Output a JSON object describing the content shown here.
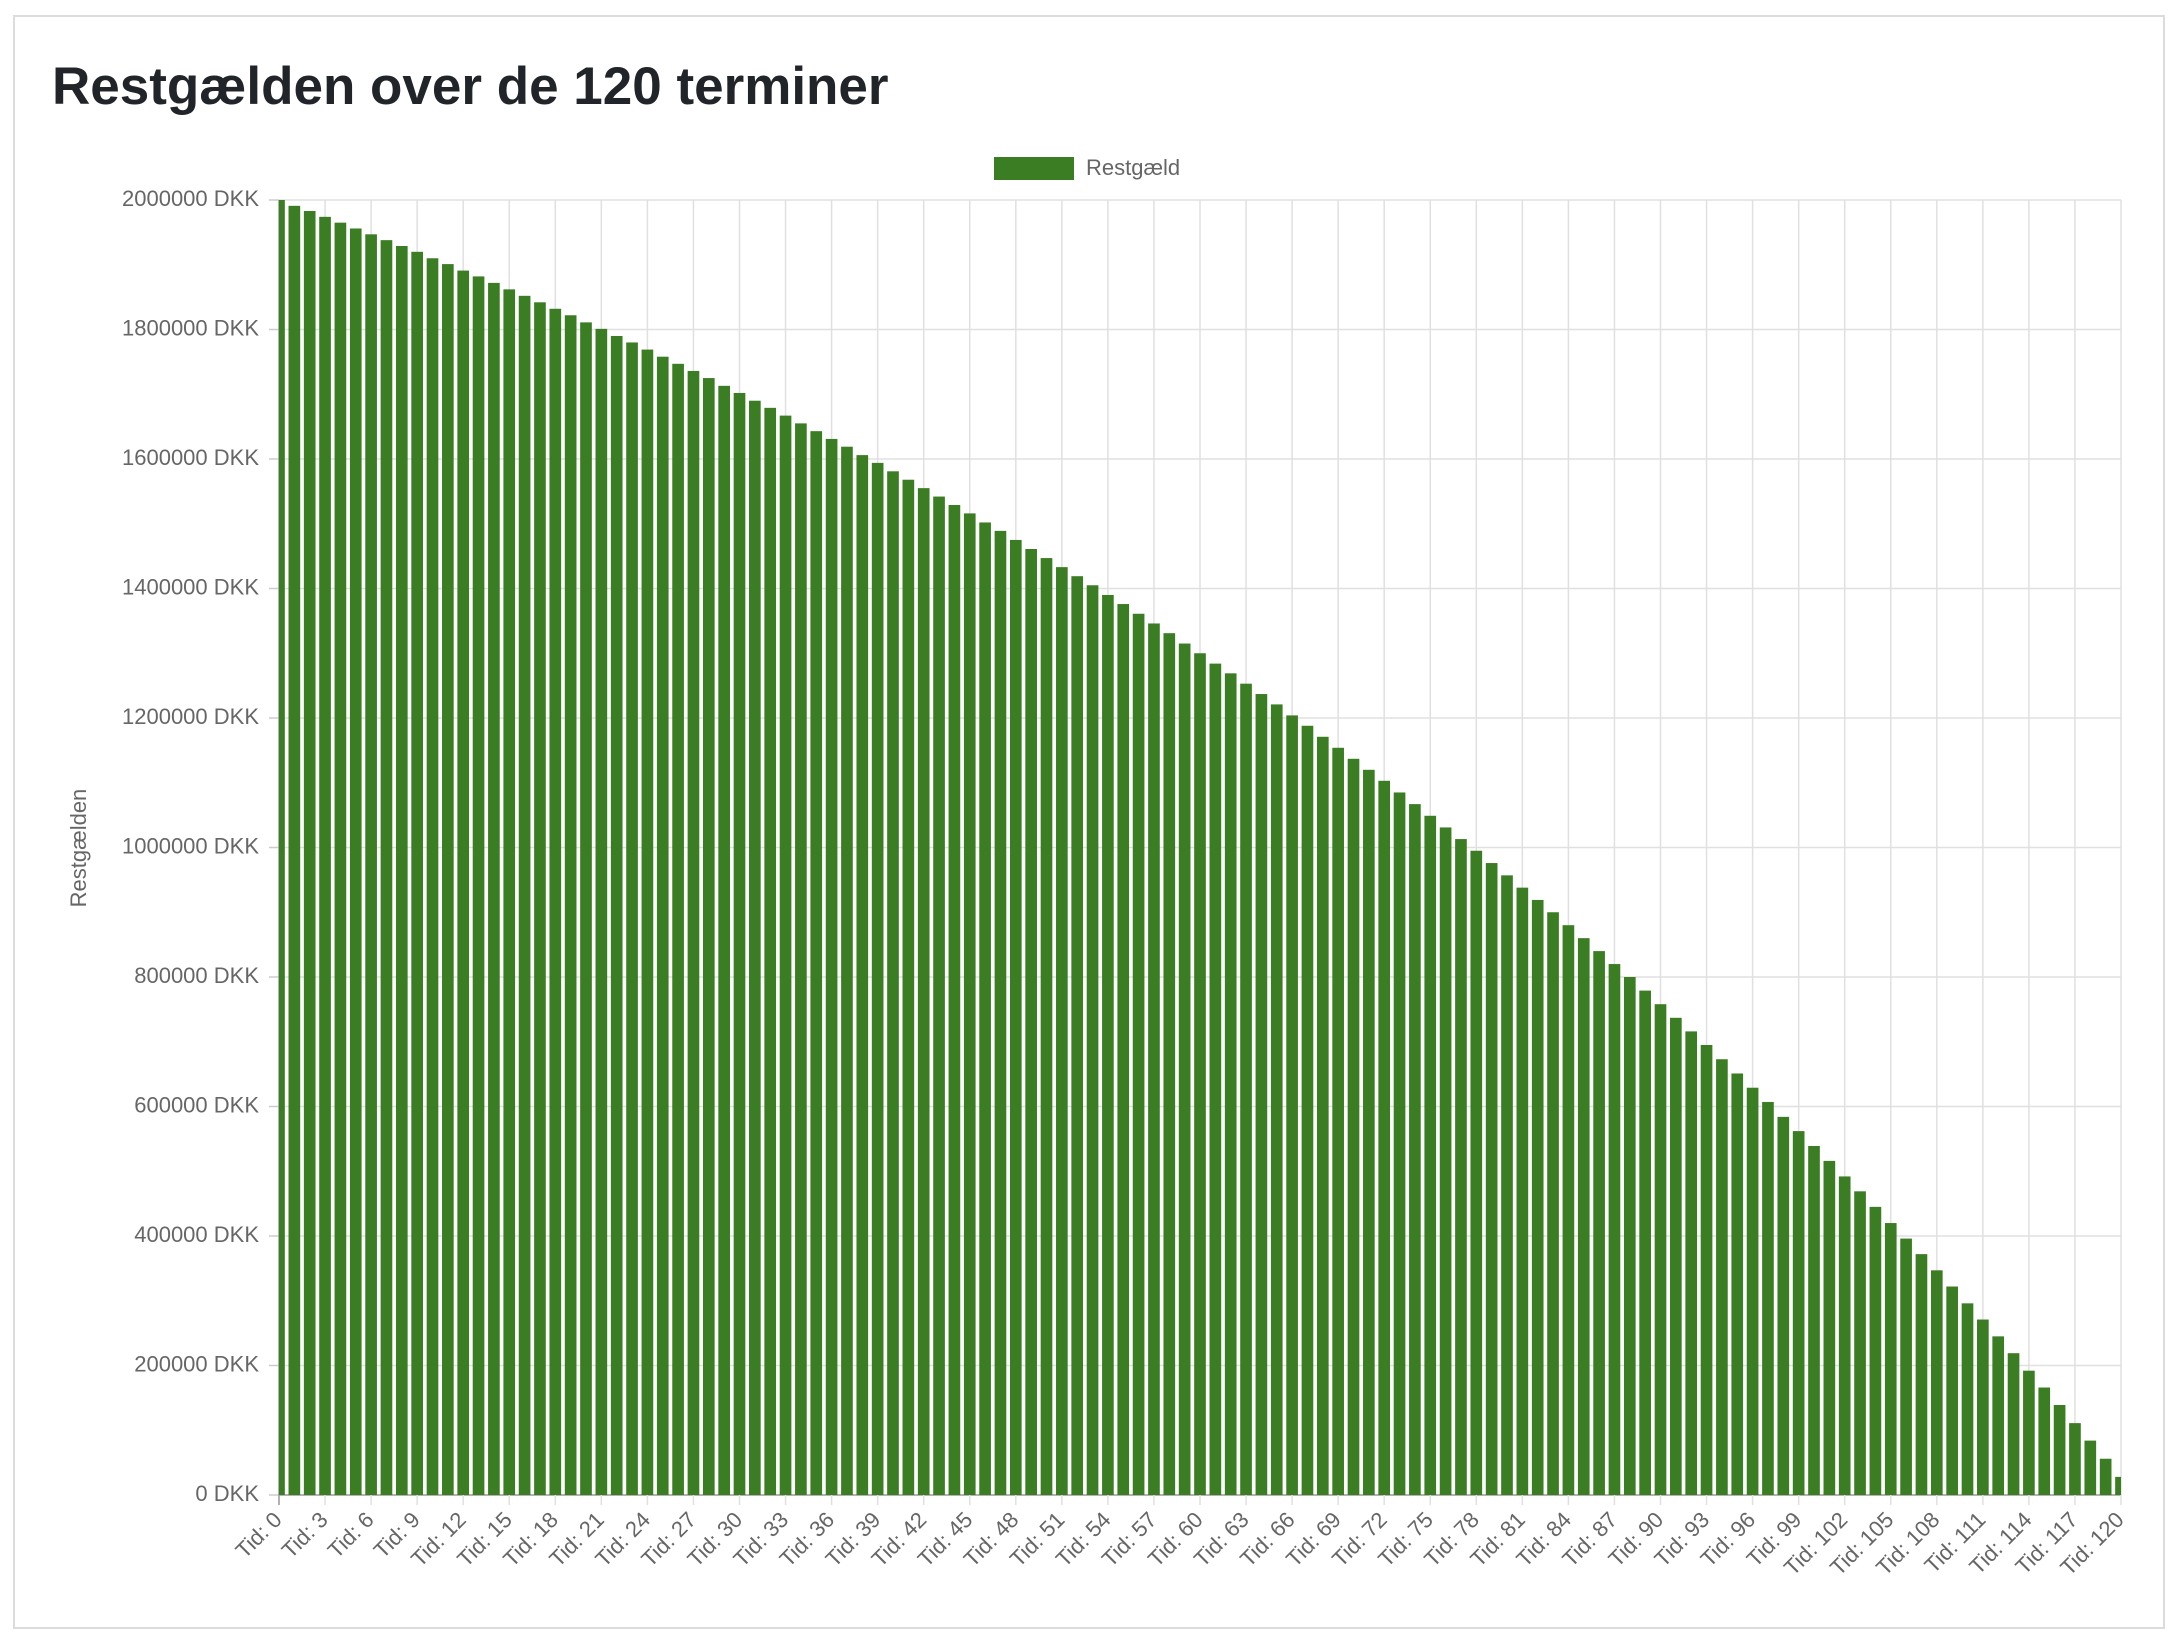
{
  "chart_data": {
    "type": "bar",
    "title": "Restgælden over de 120 terminer",
    "y_label": "Restgælden",
    "legend": "top",
    "grid": true,
    "categories": [
      "Tid: 0",
      null,
      null,
      "Tid: 3",
      null,
      null,
      "Tid: 6",
      null,
      null,
      "Tid: 9",
      null,
      null,
      "Tid: 12",
      null,
      null,
      "Tid: 15",
      null,
      null,
      "Tid: 18",
      null,
      null,
      "Tid: 21",
      null,
      null,
      "Tid: 24",
      null,
      null,
      "Tid: 27",
      null,
      null,
      "Tid: 30",
      null,
      null,
      "Tid: 33",
      null,
      null,
      "Tid: 36",
      null,
      null,
      "Tid: 39",
      null,
      null,
      "Tid: 42",
      null,
      null,
      "Tid: 45",
      null,
      null,
      "Tid: 48",
      null,
      null,
      "Tid: 51",
      null,
      null,
      "Tid: 54",
      null,
      null,
      "Tid: 57",
      null,
      null,
      "Tid: 60",
      null,
      null,
      "Tid: 63",
      null,
      null,
      "Tid: 66",
      null,
      null,
      "Tid: 69",
      null,
      null,
      "Tid: 72",
      null,
      null,
      "Tid: 75",
      null,
      null,
      "Tid: 78",
      null,
      null,
      "Tid: 81",
      null,
      null,
      "Tid: 84",
      null,
      null,
      "Tid: 87",
      null,
      null,
      "Tid: 90",
      null,
      null,
      "Tid: 93",
      null,
      null,
      "Tid: 96",
      null,
      null,
      "Tid: 99",
      null,
      null,
      "Tid: 102",
      null,
      null,
      "Tid: 105",
      null,
      null,
      "Tid: 108",
      null,
      null,
      "Tid: 111",
      null,
      null,
      "Tid: 114",
      null,
      null,
      "Tid: 117",
      null,
      null,
      "Tid: 120"
    ],
    "series": [
      {
        "name": "Restgæld",
        "color": "#3b7d23",
        "values": [
          2000000,
          1991000,
          1983000,
          1974000,
          1965000,
          1956000,
          1947000,
          1938000,
          1929000,
          1920000,
          1910000,
          1901000,
          1891000,
          1882000,
          1872000,
          1862000,
          1852000,
          1842000,
          1832000,
          1822000,
          1811000,
          1801000,
          1790000,
          1780000,
          1769000,
          1758000,
          1747000,
          1736000,
          1725000,
          1713000,
          1702000,
          1690000,
          1679000,
          1667000,
          1655000,
          1643000,
          1631000,
          1619000,
          1606000,
          1594000,
          1581000,
          1568000,
          1555000,
          1542000,
          1529000,
          1516000,
          1502000,
          1489000,
          1475000,
          1461000,
          1447000,
          1433000,
          1419000,
          1405000,
          1390000,
          1376000,
          1361000,
          1346000,
          1331000,
          1315000,
          1300000,
          1284000,
          1269000,
          1253000,
          1237000,
          1221000,
          1204000,
          1188000,
          1171000,
          1154000,
          1137000,
          1120000,
          1103000,
          1085000,
          1067000,
          1049000,
          1031000,
          1013000,
          995000,
          976000,
          957000,
          938000,
          919000,
          900000,
          880000,
          860000,
          840000,
          820000,
          800000,
          779000,
          758000,
          737000,
          716000,
          695000,
          673000,
          651000,
          629000,
          607000,
          584000,
          562000,
          539000,
          516000,
          492000,
          469000,
          445000,
          420000,
          396000,
          372000,
          347000,
          322000,
          296000,
          271000,
          245000,
          219000,
          192000,
          166000,
          139000,
          111000,
          84000,
          56000,
          28000
        ]
      }
    ],
    "ylim": [
      0,
      2000000
    ],
    "yticks": [
      {
        "value": 0,
        "label": "0 DKK"
      },
      {
        "value": 200000,
        "label": "200000 DKK"
      },
      {
        "value": 400000,
        "label": "400000 DKK"
      },
      {
        "value": 600000,
        "label": "600000 DKK"
      },
      {
        "value": 800000,
        "label": "800000 DKK"
      },
      {
        "value": 1000000,
        "label": "1000000 DKK"
      },
      {
        "value": 1200000,
        "label": "1200000 DKK"
      },
      {
        "value": 1400000,
        "label": "1400000 DKK"
      },
      {
        "value": 1600000,
        "label": "1600000 DKK"
      },
      {
        "value": 1800000,
        "label": "1800000 DKK"
      },
      {
        "value": 2000000,
        "label": "2000000 DKK"
      }
    ]
  }
}
